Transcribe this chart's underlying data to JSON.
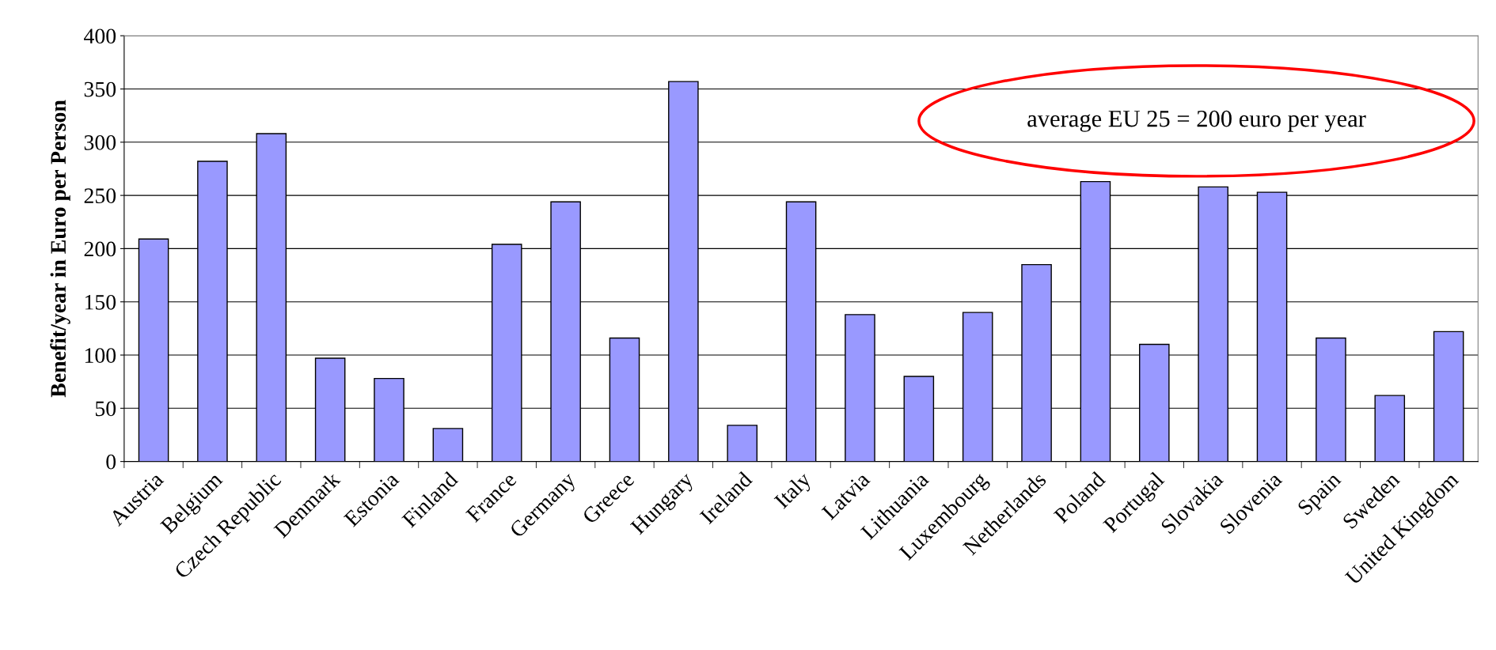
{
  "chart_data": {
    "type": "bar",
    "ylabel": "Benefit/year in Euro per Person",
    "categories": [
      "Austria",
      "Belgium",
      "Czech Republic",
      "Denmark",
      "Estonia",
      "Finland",
      "France",
      "Germany",
      "Greece",
      "Hungary",
      "Ireland",
      "Italy",
      "Latvia",
      "Lithuania",
      "Luxembourg",
      "Netherlands",
      "Poland",
      "Portugal",
      "Slovakia",
      "Slovenia",
      "Spain",
      "Sweden",
      "United Kingdom"
    ],
    "values": [
      209,
      282,
      308,
      97,
      78,
      31,
      204,
      244,
      116,
      357,
      34,
      244,
      138,
      80,
      140,
      185,
      263,
      110,
      258,
      253,
      116,
      62,
      122
    ],
    "color": "#9999ff",
    "ylim": [
      0,
      400
    ],
    "yticks": [
      0,
      50,
      100,
      150,
      200,
      250,
      300,
      350,
      400
    ],
    "grid": "y",
    "legend": false,
    "annotations": [
      "average EU 25 = 200 euro per year"
    ]
  }
}
